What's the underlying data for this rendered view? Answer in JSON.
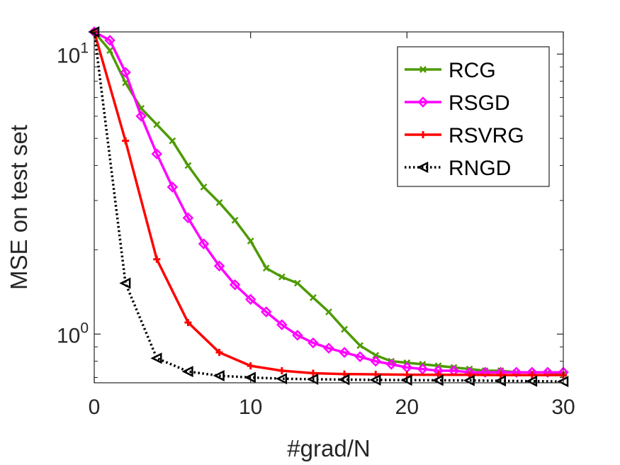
{
  "chart_data": {
    "type": "line",
    "title": "",
    "xlabel": "#grad/N",
    "ylabel": "MSE on test set",
    "xlim": [
      0,
      30
    ],
    "ylim": [
      0.67,
      12.0
    ],
    "yscale": "log",
    "xticks": [
      0,
      10,
      20,
      30
    ],
    "xtick_labels": [
      "0",
      "10",
      "20",
      "30"
    ],
    "yticks": [
      {
        "value": 1,
        "base": "10",
        "exp": "0"
      },
      {
        "value": 10,
        "base": "10",
        "exp": "1"
      }
    ],
    "grid": false,
    "legend_position": "top-right",
    "series": [
      {
        "name": "RCG",
        "color": "#4d9a00",
        "marker": "x",
        "dash": "solid",
        "x": [
          0,
          1,
          2,
          3,
          4,
          5,
          6,
          7,
          8,
          9,
          10,
          11,
          12,
          13,
          14,
          15,
          16,
          17,
          18,
          19,
          20,
          21,
          22,
          23,
          24,
          25,
          26,
          27,
          28,
          29,
          30
        ],
        "values": [
          12.0,
          10.3,
          7.9,
          6.4,
          5.6,
          4.9,
          4.0,
          3.35,
          2.95,
          2.55,
          2.15,
          1.72,
          1.6,
          1.52,
          1.35,
          1.2,
          1.04,
          0.91,
          0.84,
          0.8,
          0.79,
          0.78,
          0.77,
          0.76,
          0.75,
          0.74,
          0.74,
          0.73,
          0.73,
          0.73,
          0.72
        ]
      },
      {
        "name": "RSGD",
        "color": "#ff00ff",
        "marker": "diamond",
        "dash": "solid",
        "x": [
          0,
          1,
          2,
          3,
          4,
          5,
          6,
          7,
          8,
          9,
          10,
          11,
          12,
          13,
          14,
          15,
          16,
          17,
          18,
          19,
          20,
          21,
          22,
          23,
          24,
          25,
          26,
          27,
          28,
          29,
          30
        ],
        "values": [
          12.0,
          11.2,
          8.6,
          6.0,
          4.4,
          3.35,
          2.6,
          2.1,
          1.75,
          1.5,
          1.33,
          1.2,
          1.08,
          0.99,
          0.93,
          0.89,
          0.86,
          0.83,
          0.8,
          0.78,
          0.76,
          0.75,
          0.74,
          0.74,
          0.73,
          0.73,
          0.73,
          0.73,
          0.73,
          0.73,
          0.73
        ]
      },
      {
        "name": "RSVRG",
        "color": "#ff0000",
        "marker": "plus",
        "dash": "solid",
        "x": [
          0,
          2,
          4,
          6,
          8,
          10,
          12,
          14,
          16,
          18,
          20,
          22,
          24,
          26,
          28,
          30
        ],
        "values": [
          12.0,
          4.9,
          1.85,
          1.1,
          0.86,
          0.77,
          0.74,
          0.725,
          0.72,
          0.718,
          0.716,
          0.715,
          0.715,
          0.714,
          0.714,
          0.714
        ]
      },
      {
        "name": "RNGD",
        "color": "#000000",
        "marker": "triangle-left",
        "dash": "dotted",
        "x": [
          0,
          2,
          4,
          6,
          8,
          10,
          12,
          14,
          16,
          18,
          20,
          22,
          24,
          26,
          28,
          30
        ],
        "values": [
          12.0,
          1.52,
          0.82,
          0.735,
          0.71,
          0.7,
          0.693,
          0.69,
          0.688,
          0.686,
          0.685,
          0.684,
          0.683,
          0.681,
          0.679,
          0.677
        ]
      }
    ]
  }
}
